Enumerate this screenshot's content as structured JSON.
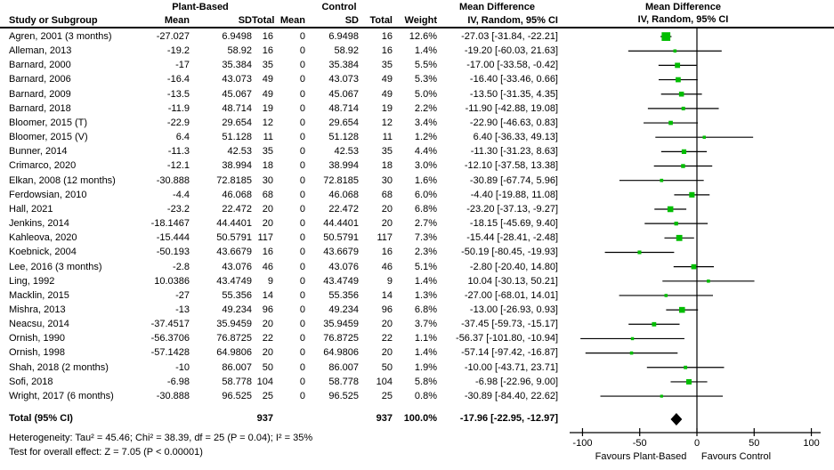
{
  "header": {
    "study_col": "Study or Subgroup",
    "group1": "Plant-Based",
    "group2": "Control",
    "mean1": "Mean",
    "sd1": "SD",
    "total1": "Total",
    "mean2": "Mean",
    "sd2": "SD",
    "total2": "Total",
    "weight": "Weight",
    "md_line1": "Mean Difference",
    "md_line2": "IV, Random, 95% CI",
    "plot_line1": "Mean Difference",
    "plot_line2": "IV, Random, 95% CI"
  },
  "chart_data": {
    "type": "forest",
    "effect_measure": "Mean Difference, IV, Random, 95% CI",
    "studies": [
      {
        "name": "Agren, 2001 (3 months)",
        "mean1": "-27.027",
        "sd1": "6.9498",
        "n1": "16",
        "mean2": "0",
        "sd2": "6.9498",
        "n2": "16",
        "weight": "12.6%",
        "ci_text": "-27.03 [-31.84, -22.21]",
        "md": -27.03,
        "lo": -31.84,
        "hi": -22.21,
        "w": 12.6
      },
      {
        "name": "Alleman, 2013",
        "mean1": "-19.2",
        "sd1": "58.92",
        "n1": "16",
        "mean2": "0",
        "sd2": "58.92",
        "n2": "16",
        "weight": "1.4%",
        "ci_text": "-19.20 [-60.03, 21.63]",
        "md": -19.2,
        "lo": -60.03,
        "hi": 21.63,
        "w": 1.4
      },
      {
        "name": "Barnard, 2000",
        "mean1": "-17",
        "sd1": "35.384",
        "n1": "35",
        "mean2": "0",
        "sd2": "35.384",
        "n2": "35",
        "weight": "5.5%",
        "ci_text": "-17.00 [-33.58, -0.42]",
        "md": -17.0,
        "lo": -33.58,
        "hi": -0.42,
        "w": 5.5
      },
      {
        "name": "Barnard, 2006",
        "mean1": "-16.4",
        "sd1": "43.073",
        "n1": "49",
        "mean2": "0",
        "sd2": "43.073",
        "n2": "49",
        "weight": "5.3%",
        "ci_text": "-16.40 [-33.46, 0.66]",
        "md": -16.4,
        "lo": -33.46,
        "hi": 0.66,
        "w": 5.3
      },
      {
        "name": "Barnard, 2009",
        "mean1": "-13.5",
        "sd1": "45.067",
        "n1": "49",
        "mean2": "0",
        "sd2": "45.067",
        "n2": "49",
        "weight": "5.0%",
        "ci_text": "-13.50 [-31.35, 4.35]",
        "md": -13.5,
        "lo": -31.35,
        "hi": 4.35,
        "w": 5.0
      },
      {
        "name": "Barnard, 2018",
        "mean1": "-11.9",
        "sd1": "48.714",
        "n1": "19",
        "mean2": "0",
        "sd2": "48.714",
        "n2": "19",
        "weight": "2.2%",
        "ci_text": "-11.90 [-42.88, 19.08]",
        "md": -11.9,
        "lo": -42.88,
        "hi": 19.08,
        "w": 2.2
      },
      {
        "name": "Bloomer, 2015 (T)",
        "mean1": "-22.9",
        "sd1": "29.654",
        "n1": "12",
        "mean2": "0",
        "sd2": "29.654",
        "n2": "12",
        "weight": "3.4%",
        "ci_text": "-22.90 [-46.63, 0.83]",
        "md": -22.9,
        "lo": -46.63,
        "hi": 0.83,
        "w": 3.4
      },
      {
        "name": "Bloomer, 2015 (V)",
        "mean1": "6.4",
        "sd1": "51.128",
        "n1": "11",
        "mean2": "0",
        "sd2": "51.128",
        "n2": "11",
        "weight": "1.2%",
        "ci_text": "6.40 [-36.33, 49.13]",
        "md": 6.4,
        "lo": -36.33,
        "hi": 49.13,
        "w": 1.2
      },
      {
        "name": "Bunner, 2014",
        "mean1": "-11.3",
        "sd1": "42.53",
        "n1": "35",
        "mean2": "0",
        "sd2": "42.53",
        "n2": "35",
        "weight": "4.4%",
        "ci_text": "-11.30 [-31.23, 8.63]",
        "md": -11.3,
        "lo": -31.23,
        "hi": 8.63,
        "w": 4.4
      },
      {
        "name": "Crimarco, 2020",
        "mean1": "-12.1",
        "sd1": "38.994",
        "n1": "18",
        "mean2": "0",
        "sd2": "38.994",
        "n2": "18",
        "weight": "3.0%",
        "ci_text": "-12.10 [-37.58, 13.38]",
        "md": -12.1,
        "lo": -37.58,
        "hi": 13.38,
        "w": 3.0
      },
      {
        "name": "Elkan, 2008 (12 months)",
        "mean1": "-30.888",
        "sd1": "72.8185",
        "n1": "30",
        "mean2": "0",
        "sd2": "72.8185",
        "n2": "30",
        "weight": "1.6%",
        "ci_text": "-30.89 [-67.74, 5.96]",
        "md": -30.89,
        "lo": -67.74,
        "hi": 5.96,
        "w": 1.6
      },
      {
        "name": "Ferdowsian, 2010",
        "mean1": "-4.4",
        "sd1": "46.068",
        "n1": "68",
        "mean2": "0",
        "sd2": "46.068",
        "n2": "68",
        "weight": "6.0%",
        "ci_text": "-4.40 [-19.88, 11.08]",
        "md": -4.4,
        "lo": -19.88,
        "hi": 11.08,
        "w": 6.0
      },
      {
        "name": "Hall, 2021",
        "mean1": "-23.2",
        "sd1": "22.472",
        "n1": "20",
        "mean2": "0",
        "sd2": "22.472",
        "n2": "20",
        "weight": "6.8%",
        "ci_text": "-23.20 [-37.13, -9.27]",
        "md": -23.2,
        "lo": -37.13,
        "hi": -9.27,
        "w": 6.8
      },
      {
        "name": "Jenkins, 2014",
        "mean1": "-18.1467",
        "sd1": "44.4401",
        "n1": "20",
        "mean2": "0",
        "sd2": "44.4401",
        "n2": "20",
        "weight": "2.7%",
        "ci_text": "-18.15 [-45.69, 9.40]",
        "md": -18.15,
        "lo": -45.69,
        "hi": 9.4,
        "w": 2.7
      },
      {
        "name": "Kahleova, 2020",
        "mean1": "-15.444",
        "sd1": "50.5791",
        "n1": "117",
        "mean2": "0",
        "sd2": "50.5791",
        "n2": "117",
        "weight": "7.3%",
        "ci_text": "-15.44 [-28.41, -2.48]",
        "md": -15.44,
        "lo": -28.41,
        "hi": -2.48,
        "w": 7.3
      },
      {
        "name": "Koebnick, 2004",
        "mean1": "-50.193",
        "sd1": "43.6679",
        "n1": "16",
        "mean2": "0",
        "sd2": "43.6679",
        "n2": "16",
        "weight": "2.3%",
        "ci_text": "-50.19 [-80.45, -19.93]",
        "md": -50.19,
        "lo": -80.45,
        "hi": -19.93,
        "w": 2.3
      },
      {
        "name": "Lee, 2016 (3 months)",
        "mean1": "-2.8",
        "sd1": "43.076",
        "n1": "46",
        "mean2": "0",
        "sd2": "43.076",
        "n2": "46",
        "weight": "5.1%",
        "ci_text": "-2.80 [-20.40, 14.80]",
        "md": -2.8,
        "lo": -20.4,
        "hi": 14.8,
        "w": 5.1
      },
      {
        "name": "Ling, 1992",
        "mean1": "10.0386",
        "sd1": "43.4749",
        "n1": "9",
        "mean2": "0",
        "sd2": "43.4749",
        "n2": "9",
        "weight": "1.4%",
        "ci_text": "10.04 [-30.13, 50.21]",
        "md": 10.04,
        "lo": -30.13,
        "hi": 50.21,
        "w": 1.4
      },
      {
        "name": "Macklin, 2015",
        "mean1": "-27",
        "sd1": "55.356",
        "n1": "14",
        "mean2": "0",
        "sd2": "55.356",
        "n2": "14",
        "weight": "1.3%",
        "ci_text": "-27.00 [-68.01, 14.01]",
        "md": -27.0,
        "lo": -68.01,
        "hi": 14.01,
        "w": 1.3
      },
      {
        "name": "Mishra, 2013",
        "mean1": "-13",
        "sd1": "49.234",
        "n1": "96",
        "mean2": "0",
        "sd2": "49.234",
        "n2": "96",
        "weight": "6.8%",
        "ci_text": "-13.00 [-26.93, 0.93]",
        "md": -13.0,
        "lo": -26.93,
        "hi": 0.93,
        "w": 6.8
      },
      {
        "name": "Neacsu, 2014",
        "mean1": "-37.4517",
        "sd1": "35.9459",
        "n1": "20",
        "mean2": "0",
        "sd2": "35.9459",
        "n2": "20",
        "weight": "3.7%",
        "ci_text": "-37.45 [-59.73, -15.17]",
        "md": -37.45,
        "lo": -59.73,
        "hi": -15.17,
        "w": 3.7
      },
      {
        "name": "Ornish, 1990",
        "mean1": "-56.3706",
        "sd1": "76.8725",
        "n1": "22",
        "mean2": "0",
        "sd2": "76.8725",
        "n2": "22",
        "weight": "1.1%",
        "ci_text": "-56.37 [-101.80, -10.94]",
        "md": -56.37,
        "lo": -101.8,
        "hi": -10.94,
        "w": 1.1
      },
      {
        "name": "Ornish, 1998",
        "mean1": "-57.1428",
        "sd1": "64.9806",
        "n1": "20",
        "mean2": "0",
        "sd2": "64.9806",
        "n2": "20",
        "weight": "1.4%",
        "ci_text": "-57.14 [-97.42, -16.87]",
        "md": -57.14,
        "lo": -97.42,
        "hi": -16.87,
        "w": 1.4
      },
      {
        "name": "Shah, 2018 (2 months)",
        "mean1": "-10",
        "sd1": "86.007",
        "n1": "50",
        "mean2": "0",
        "sd2": "86.007",
        "n2": "50",
        "weight": "1.9%",
        "ci_text": "-10.00 [-43.71, 23.71]",
        "md": -10.0,
        "lo": -43.71,
        "hi": 23.71,
        "w": 1.9
      },
      {
        "name": "Sofi, 2018",
        "mean1": "-6.98",
        "sd1": "58.778",
        "n1": "104",
        "mean2": "0",
        "sd2": "58.778",
        "n2": "104",
        "weight": "5.8%",
        "ci_text": "-6.98 [-22.96, 9.00]",
        "md": -6.98,
        "lo": -22.96,
        "hi": 9.0,
        "w": 5.8
      },
      {
        "name": "Wright, 2017 (6 months)",
        "mean1": "-30.888",
        "sd1": "96.525",
        "n1": "25",
        "mean2": "0",
        "sd2": "96.525",
        "n2": "25",
        "weight": "0.8%",
        "ci_text": "-30.89 [-84.40, 22.62]",
        "md": -30.89,
        "lo": -84.4,
        "hi": 22.62,
        "w": 0.8
      }
    ],
    "total": {
      "label": "Total (95% CI)",
      "n1": "937",
      "n2": "937",
      "weight": "100.0%",
      "ci_text": "-17.96 [-22.95, -12.97]",
      "md": -17.96,
      "lo": -22.95,
      "hi": -12.97
    },
    "axis": {
      "xmin": -100,
      "xmax": 100,
      "ticks": [
        "-100",
        "-50",
        "0",
        "50",
        "100"
      ],
      "tick_values": [
        -100,
        -50,
        0,
        50,
        100
      ],
      "favours_left": "Favours Plant-Based",
      "favours_right": "Favours Control"
    }
  },
  "footer": {
    "heterogeneity": "Heterogeneity: Tau² = 45.46; Chi² = 38.39, df = 25 (P = 0.04); I² = 35%",
    "overall_effect": "Test for overall effect: Z = 7.05 (P < 0.00001)"
  },
  "colors": {
    "marker_green": "#00bd00",
    "line_black": "#000000",
    "diamond_black": "#000000"
  }
}
